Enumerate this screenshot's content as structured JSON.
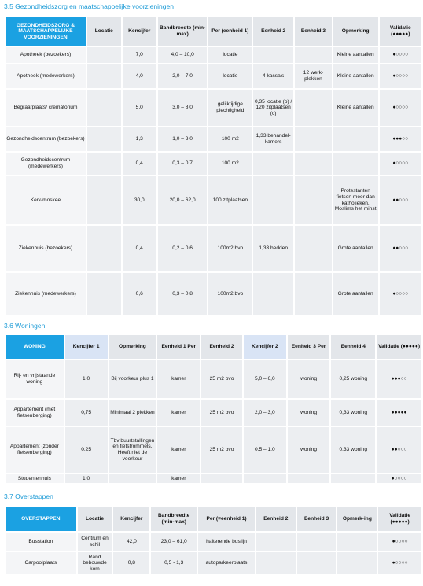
{
  "sections": [
    {
      "title": "3.5  Gezondheidszorg en maatschappelijke voorzieningen",
      "header": [
        "GEZONDHEIDSZORG & MAATSCHAPPELIJKE VOORZIENINGEN",
        "Locatie",
        "Kencijfer",
        "Bandbreedte (min-max)",
        "Per (eenheid 1)",
        "Eenheid 2",
        "Eenheid 3",
        "Opmerking",
        "Validatie (●●●●●)"
      ],
      "rows": [
        [
          "Apotheek (bezoekers)",
          null,
          "7,0",
          "4,0 – 10,0",
          "locatie",
          null,
          null,
          "Kleine aantallen",
          "●○○○○"
        ],
        [
          "Apotheek (medewerkers)",
          null,
          "4,0",
          "2,0 – 7,0",
          "locatie",
          "4 kassa's",
          "12 werk-plekken",
          "Kleine aantallen",
          "●○○○○"
        ],
        [
          "Begraafplaats/ crematorium",
          null,
          "5,0",
          "3,0 – 8,0",
          "gelijktijdige plechtigheid",
          "0,35 locatie (b) / 120 zitplaatsen (c)",
          null,
          "Kleine aantallen",
          "●○○○○"
        ],
        [
          "Gezondheidscentrum (bezoekers)",
          null,
          "1,3",
          "1,0 – 3,0",
          "100 m2",
          "1,33 behandel-kamers",
          null,
          null,
          "●●●○○"
        ],
        [
          "Gezondheidscentrum (medewerkers)",
          null,
          "0,4",
          "0,3 – 0,7",
          "100 m2",
          null,
          null,
          null,
          "●○○○○"
        ],
        [
          "Kerk/moskee",
          null,
          "30,0",
          "20,0 – 62,0",
          "100 zitplaatsen",
          null,
          null,
          "Protestanten fietsen meer dan katholieken. Moslims het minst",
          "●●○○○"
        ],
        [
          "Ziekenhuis (bezoekers)",
          null,
          "0,4",
          "0,2 – 0,6",
          "100m2 bvo",
          "1,33 bedden",
          null,
          "Grote aantallen",
          "●●○○○"
        ],
        [
          "Ziekenhuis (medewerkers)",
          null,
          "0,6",
          "0,3 – 0,8",
          "100m2 bvo",
          null,
          null,
          "Grote aantallen",
          "●○○○○"
        ]
      ]
    },
    {
      "title": "3.6  Woningen",
      "header": [
        "WONING",
        "Kencijfer 1",
        "Opmerking",
        "Eenheid 1 Per",
        "Eenheid 2",
        "Kencijfer 2",
        "Eenheid 3 Per",
        "Eenheid 4",
        "Validatie (●●●●●)"
      ],
      "rows": [
        [
          "Rij- en vrijstaande woning",
          "1,0",
          "Bij voorkeur plus 1",
          "kamer",
          "25 m2 bvo",
          "5,0 – 6,0",
          "woning",
          "0,25 woning",
          "●●●○○"
        ],
        [
          "Appartement (met fietsenberging)",
          "0,75",
          "Minimaal 2 plekken",
          "kamer",
          "25 m2 bvo",
          "2,0 – 3,0",
          "woning",
          "0,33 woning",
          "●●●●●"
        ],
        [
          "Appartement (zonder fietsenberging)",
          "0,25",
          "Tbv buurtstallingen en fietstrommels. Heeft niet de voorkeur",
          "kamer",
          "25 m2 bvo",
          "0,5 – 1,0",
          "woning",
          "0,33 woning",
          "●●○○○"
        ],
        [
          "Studentenhuis",
          "1,0",
          null,
          "kamer",
          null,
          null,
          null,
          null,
          "●○○○○"
        ]
      ]
    },
    {
      "title": "3.7  Overstappen",
      "header": [
        "OVERSTAPPEN",
        "Locatie",
        "Kencijfer",
        "Bandbreedte (min-max)",
        "Per (=eenheid 1)",
        "Eenheid 2",
        "Eenheid 3",
        "Opmerk-ing",
        "Validatie (●●●●●)"
      ],
      "rows": [
        [
          "Busstation",
          "Centrum en schil",
          "42,0",
          "23,0 – 61,0",
          "halterende buslijn",
          null,
          null,
          null,
          "●○○○○"
        ],
        [
          "Carpoolplaats",
          "Rand bebouwde kom",
          "0,8",
          "0,5 - 1,3",
          "autoparkeerplaats",
          null,
          null,
          null,
          "●○○○○"
        ]
      ]
    }
  ]
}
